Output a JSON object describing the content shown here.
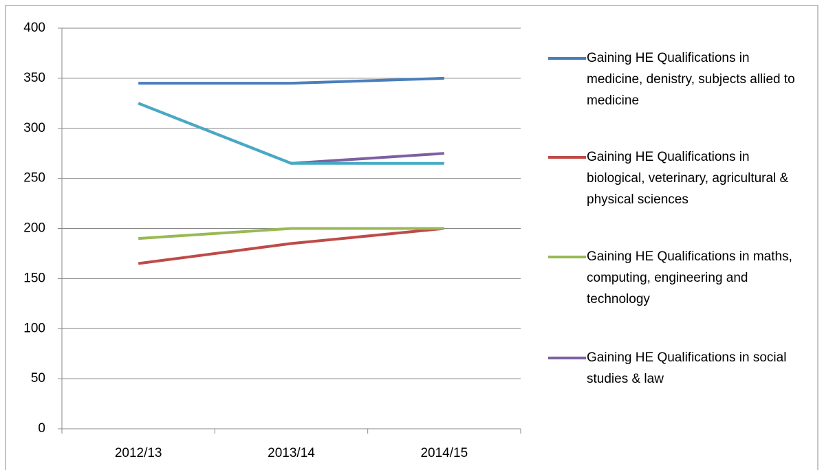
{
  "chart_data": {
    "type": "line",
    "categories": [
      "2012/13",
      "2013/14",
      "2014/15"
    ],
    "series": [
      {
        "name": "Gaining HE Qualifications in medicine, denistry, subjects allied to medicine",
        "color": "#4a7ebb",
        "values": [
          345,
          345,
          350
        ]
      },
      {
        "name": "Gaining HE Qualifications in biological, veterinary, agricultural & physical sciences",
        "color": "#be4b48",
        "values": [
          165,
          185,
          200
        ]
      },
      {
        "name": "Gaining HE Qualifications in maths, computing, engineering and technology",
        "color": "#98b954",
        "values": [
          190,
          200,
          200
        ]
      },
      {
        "name": "Gaining HE Qualifications in social studies & law",
        "color": "#7d60a0",
        "values": [
          325,
          265,
          275
        ]
      },
      {
        "color": "#46aac5",
        "values": [
          325,
          265,
          265
        ]
      }
    ],
    "ylim": [
      0,
      400
    ],
    "yticks": [
      0,
      50,
      100,
      150,
      200,
      250,
      300,
      350,
      400
    ],
    "grid": true,
    "legend": "right"
  }
}
